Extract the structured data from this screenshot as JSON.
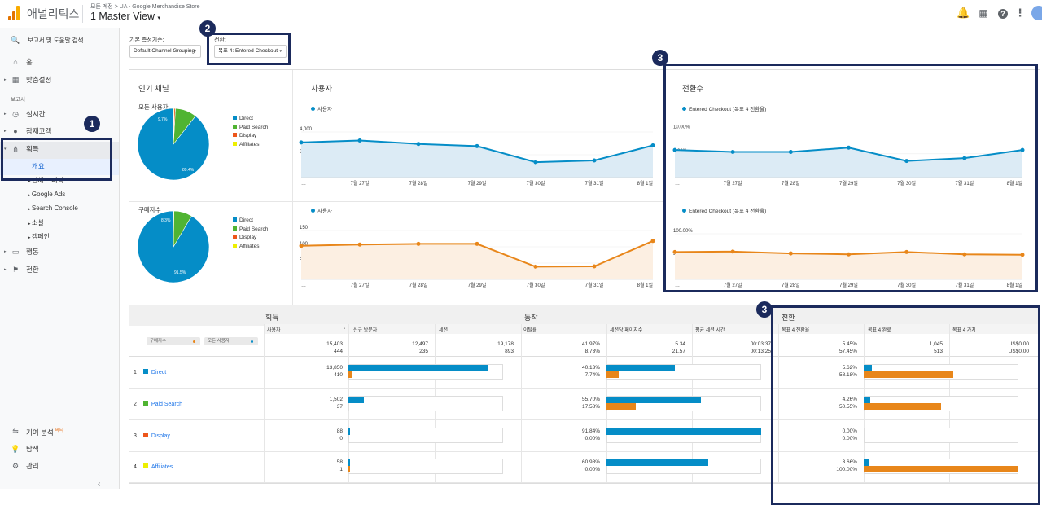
{
  "header": {
    "app_name": "애널리틱스",
    "breadcrumb": "모든 계정 > UA - Google Merchandise Store",
    "view": "1 Master View",
    "logo_colors": [
      "#f9ab00",
      "#e37400",
      "#e37400"
    ]
  },
  "sidebar": {
    "search": "보고서 및 도움말 검색",
    "home": "홈",
    "customization": "맞춤설정",
    "reports_heading": "보고서",
    "realtime": "실시간",
    "audience": "잠재고객",
    "acquisition": "획득",
    "overview": "개요",
    "all_traffic": "전체 트래픽",
    "google_ads": "Google Ads",
    "search_console": "Search Console",
    "social": "소셜",
    "campaigns": "캠페인",
    "behavior": "행동",
    "conversions": "전환",
    "attribution": "기여 분석",
    "attribution_badge": "베타",
    "discover": "탐색",
    "admin": "관리"
  },
  "callouts": {
    "one": "1",
    "two": "2",
    "three_a": "3",
    "three_b": "3"
  },
  "controls": {
    "dimension_label": "기본 측정기준:",
    "dimension_value": "Default Channel Grouping",
    "conversion_label": "전환:",
    "conversion_value": "목표 4: Entered Checkout"
  },
  "colors": {
    "direct": "#058dc7",
    "paid_search": "#50b432",
    "display": "#ed561b",
    "affiliates": "#edef00",
    "blue": "#058dc7",
    "orange": "#e8861a"
  },
  "pies": {
    "title": "인기 채널",
    "top": {
      "label": "모든 사용자",
      "slices": [
        89.4,
        9.7,
        0.6,
        0.3
      ],
      "big_label": "89.4%",
      "small_label": "9.7%"
    },
    "bottom": {
      "label": "구매자수",
      "slices": [
        91.5,
        8.3,
        0.0,
        0.2
      ],
      "big_label": "91.5%",
      "small_label": "8.3%"
    },
    "legend": [
      "Direct",
      "Paid Search",
      "Display",
      "Affiliates"
    ]
  },
  "users_panel": {
    "title": "사용자",
    "series_label": "사용자"
  },
  "conv_panel": {
    "title": "전환수",
    "series_label": "Entered Checkout (목표 4 전환율)"
  },
  "chart_data": [
    {
      "type": "area",
      "title": "사용자 — 모든 사용자",
      "categories": [
        "…",
        "7월 27일",
        "7월 28일",
        "7월 29일",
        "7월 30일",
        "7월 31일",
        "8월 1일"
      ],
      "series": [
        {
          "name": "사용자",
          "values": [
            3080,
            3250,
            2950,
            2760,
            1350,
            1500,
            2820
          ]
        }
      ],
      "y_ticks": [
        "4,000",
        "2,000"
      ],
      "ylim": [
        0,
        5000
      ]
    },
    {
      "type": "area",
      "title": "사용자 — 구매자수",
      "categories": [
        "…",
        "7월 27일",
        "7월 28일",
        "7월 29일",
        "7월 30일",
        "7월 31일",
        "8월 1일"
      ],
      "series": [
        {
          "name": "사용자",
          "values": [
            103,
            107,
            109,
            109,
            39,
            40,
            118
          ]
        }
      ],
      "y_ticks": [
        "150",
        "100",
        "50"
      ],
      "ylim": [
        0,
        175
      ]
    },
    {
      "type": "area",
      "title": "전환수 — 모든 사용자",
      "categories": [
        "…",
        "7월 27일",
        "7월 28일",
        "7월 29일",
        "7월 30일",
        "7월 31일",
        "8월 1일"
      ],
      "series": [
        {
          "name": "Entered Checkout (목표 4 전환율)",
          "values": [
            5.8,
            5.4,
            5.4,
            6.3,
            3.5,
            4.1,
            5.8
          ]
        }
      ],
      "y_ticks": [
        "10.00%",
        "5.00%"
      ],
      "ylim": [
        0,
        12
      ]
    },
    {
      "type": "area",
      "title": "전환수 — 구매자수",
      "categories": [
        "…",
        "7월 27일",
        "7월 28일",
        "7월 29일",
        "7월 30일",
        "7월 31일",
        "8월 1일"
      ],
      "series": [
        {
          "name": "Entered Checkout (목표 4 전환율)",
          "values": [
            60,
            61,
            57,
            55,
            60,
            55,
            54
          ]
        }
      ],
      "y_ticks": [
        "100.00%",
        "50.00%"
      ],
      "ylim": [
        0,
        125
      ]
    }
  ],
  "table": {
    "sections": {
      "acquisition": "획득",
      "behavior": "동작",
      "conversions": "전환"
    },
    "headers": {
      "users": "사용자",
      "sort_arrow": "↓",
      "new_users": "신규 방문자",
      "sessions": "세션",
      "bounce": "이탈률",
      "pages": "세션당 페이지수",
      "duration": "평균 세션 시간",
      "goal_rate": "목표 4 전환율",
      "goal_completions": "목표 4 완료",
      "goal_value": "목표 4 가치"
    },
    "segments": {
      "buyers": "구매자수",
      "all_users": "모든 사용자"
    },
    "totals": {
      "users": [
        "15,403",
        "444"
      ],
      "new_users": [
        "12,497",
        "235"
      ],
      "sessions": [
        "19,178",
        "893"
      ],
      "bounce": [
        "41.97%",
        "8.73%"
      ],
      "pages": [
        "5.34",
        "21.57"
      ],
      "duration": [
        "00:03:37",
        "00:13:25"
      ],
      "goal_rate": [
        "5.45%",
        "57.45%"
      ],
      "goal_completions": [
        "1,045",
        "513"
      ],
      "goal_value": [
        "US$0.00",
        "US$0.00"
      ]
    },
    "rows": [
      {
        "num": "1",
        "name": "Direct",
        "color": "#058dc7",
        "users": [
          "13,850",
          "410"
        ],
        "bounce": [
          "40.13%",
          "7.74%"
        ],
        "goal": [
          "5.62%",
          "58.18%"
        ],
        "user_bar": [
          0.9,
          0.02
        ],
        "bounce_bar": [
          0.44,
          0.08
        ],
        "goal_bar": [
          0.05,
          0.58
        ]
      },
      {
        "num": "2",
        "name": "Paid Search",
        "color": "#50b432",
        "users": [
          "1,502",
          "37"
        ],
        "bounce": [
          "55.70%",
          "17.58%"
        ],
        "goal": [
          "4.26%",
          "50.55%"
        ],
        "user_bar": [
          0.1,
          0.0
        ],
        "bounce_bar": [
          0.61,
          0.19
        ],
        "goal_bar": [
          0.04,
          0.5
        ]
      },
      {
        "num": "3",
        "name": "Display",
        "color": "#ed561b",
        "users": [
          "88",
          "0"
        ],
        "bounce": [
          "91.84%",
          "0.00%"
        ],
        "goal": [
          "0.00%",
          "0.00%"
        ],
        "user_bar": [
          0.006,
          0.0
        ],
        "bounce_bar": [
          1.0,
          0.0
        ],
        "goal_bar": [
          0.0,
          0.0
        ]
      },
      {
        "num": "4",
        "name": "Affiliates",
        "color": "#edef00",
        "users": [
          "58",
          "1"
        ],
        "bounce": [
          "60.98%",
          "0.00%"
        ],
        "goal": [
          "3.66%",
          "100.00%"
        ],
        "user_bar": [
          0.004,
          0.001
        ],
        "bounce_bar": [
          0.66,
          0.0
        ],
        "goal_bar": [
          0.03,
          1.0
        ]
      }
    ]
  }
}
